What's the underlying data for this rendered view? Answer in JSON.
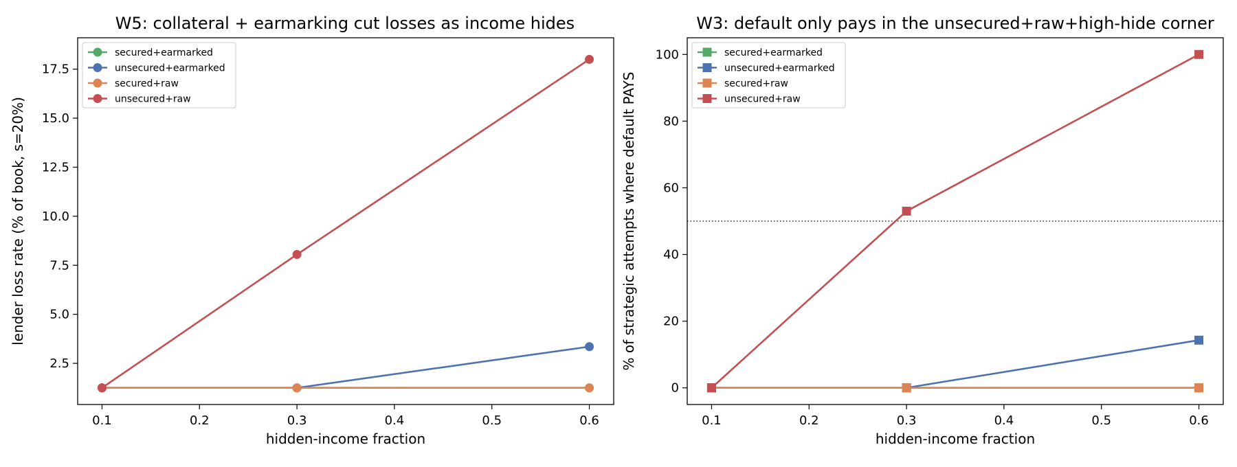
{
  "chart_data": [
    {
      "type": "line",
      "title": "W5: collateral + earmarking cut losses as income hides",
      "xlabel": "hidden-income fraction",
      "ylabel": "lender loss rate (% of book, s=20%)",
      "xlim": [
        0.075,
        0.625
      ],
      "ylim": [
        0.4,
        19.1
      ],
      "xticks": [
        0.1,
        0.2,
        0.3,
        0.4,
        0.5,
        0.6
      ],
      "xtick_labels": [
        "0.1",
        "0.2",
        "0.3",
        "0.4",
        "0.5",
        "0.6"
      ],
      "yticks": [
        2.5,
        5.0,
        7.5,
        10.0,
        12.5,
        15.0,
        17.5
      ],
      "ytick_labels": [
        "2.5",
        "5.0",
        "7.5",
        "10.0",
        "12.5",
        "15.0",
        "17.5"
      ],
      "marker": "circle",
      "legend_position": "top-left",
      "x": [
        0.1,
        0.3,
        0.6
      ],
      "series": [
        {
          "name": "secured+earmarked",
          "color": "#55a868",
          "values": [
            1.25,
            1.25,
            1.25
          ]
        },
        {
          "name": "unsecured+earmarked",
          "color": "#4c72b0",
          "values": [
            1.25,
            1.25,
            3.35
          ]
        },
        {
          "name": "secured+raw",
          "color": "#dd8452",
          "values": [
            1.25,
            1.25,
            1.25
          ]
        },
        {
          "name": "unsecured+raw",
          "color": "#c44e52",
          "values": [
            1.25,
            8.05,
            18.0
          ]
        }
      ]
    },
    {
      "type": "line",
      "title": "W3: default only pays in the unsecured+raw+high-hide corner",
      "xlabel": "hidden-income fraction",
      "ylabel": "% of strategic attempts where default PAYS",
      "xlim": [
        0.075,
        0.625
      ],
      "ylim": [
        -5,
        105
      ],
      "xticks": [
        0.1,
        0.2,
        0.3,
        0.4,
        0.5,
        0.6
      ],
      "xtick_labels": [
        "0.1",
        "0.2",
        "0.3",
        "0.4",
        "0.5",
        "0.6"
      ],
      "yticks": [
        0,
        20,
        40,
        60,
        80,
        100
      ],
      "ytick_labels": [
        "0",
        "20",
        "40",
        "60",
        "80",
        "100"
      ],
      "marker": "square",
      "legend_position": "top-left",
      "reference_line": {
        "y": 50,
        "style": "dotted"
      },
      "x": [
        0.1,
        0.3,
        0.6
      ],
      "series": [
        {
          "name": "secured+earmarked",
          "color": "#55a868",
          "values": [
            0,
            0,
            0
          ]
        },
        {
          "name": "unsecured+earmarked",
          "color": "#4c72b0",
          "values": [
            0,
            0,
            14.3
          ]
        },
        {
          "name": "secured+raw",
          "color": "#dd8452",
          "values": [
            0,
            0,
            0
          ]
        },
        {
          "name": "unsecured+raw",
          "color": "#c44e52",
          "values": [
            0,
            53,
            100
          ]
        }
      ]
    }
  ]
}
